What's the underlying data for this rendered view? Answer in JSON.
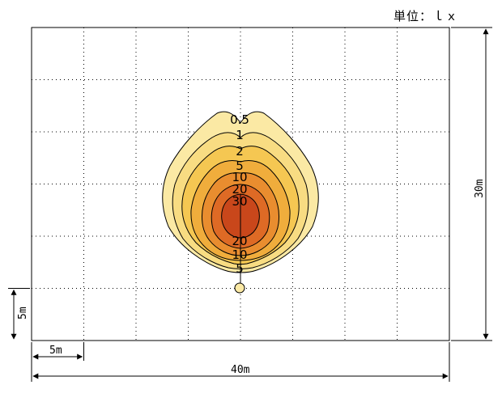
{
  "unit_label": "単位：ｌｘ",
  "dimensions": {
    "width": "40m",
    "height": "30m",
    "grid_x": "5m",
    "grid_y": "5m"
  },
  "contour_labels_upper": [
    "0.5",
    "1",
    "2",
    "5",
    "10",
    "20",
    "30"
  ],
  "contour_labels_lower": [
    "20",
    "10",
    "5"
  ],
  "colors": {
    "level_0_5": "#fbe9a4",
    "level_1": "#f8dc82",
    "level_2": "#f5c752",
    "level_5": "#f0ad3c",
    "level_10": "#e98d2f",
    "level_20": "#de6a25",
    "level_30": "#c9471b"
  }
}
